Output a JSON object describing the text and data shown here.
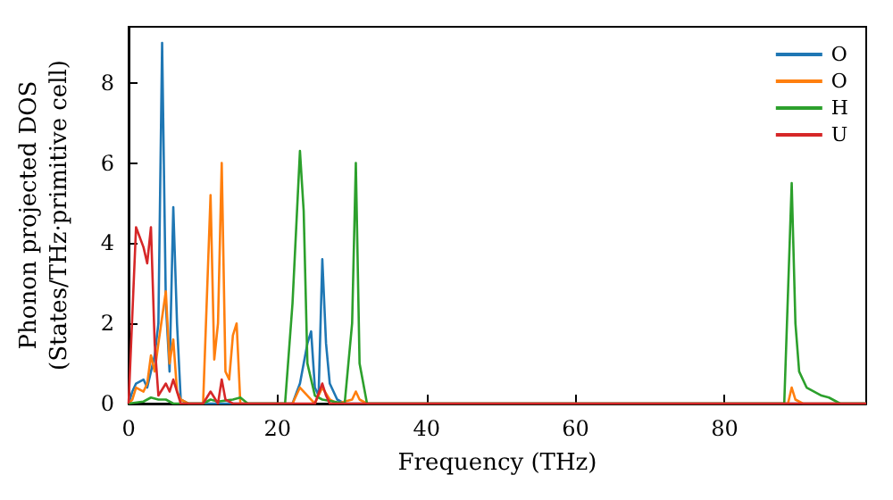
{
  "chart_data": {
    "type": "line",
    "xlabel": "Frequency (THz)",
    "ylabel": "Phonon projected DOS\n(States/THz·primitive cell)",
    "xlim": [
      0,
      99
    ],
    "xticks": [
      0,
      20,
      40,
      60,
      80
    ],
    "ylim": [
      0,
      9.4
    ],
    "yticks": [
      0,
      2,
      4,
      6,
      8
    ],
    "grid": false,
    "legend": "top right",
    "marker": "none",
    "line_style": "solid",
    "series": [
      {
        "name": "O",
        "color": "#1f77b4",
        "x": [
          0,
          0.5,
          1,
          2,
          2.5,
          3,
          3.5,
          4,
          4.5,
          5,
          5.5,
          6,
          6.5,
          7,
          8,
          22,
          23,
          24,
          24.5,
          25,
          25.5,
          26,
          26.5,
          27,
          28,
          29,
          99
        ],
        "values": [
          0,
          0.3,
          0.5,
          0.6,
          0.4,
          0.8,
          1.2,
          2.0,
          9.0,
          2.5,
          0.8,
          4.9,
          2.0,
          0.1,
          0,
          0,
          0.5,
          1.5,
          1.8,
          0.4,
          0.2,
          3.6,
          1.5,
          0.5,
          0.1,
          0,
          0
        ]
      },
      {
        "name": "O",
        "color": "#ff7f0e",
        "x": [
          0,
          0.5,
          1,
          2,
          2.5,
          3,
          3.5,
          4,
          5,
          5.5,
          6,
          6.5,
          7,
          8,
          10,
          11,
          11.5,
          12,
          12.5,
          13,
          13.5,
          14,
          14.5,
          15,
          22,
          23,
          24,
          25,
          26,
          27,
          28,
          30,
          30.5,
          31,
          32,
          88.5,
          89,
          89.5,
          90.5,
          99
        ],
        "values": [
          0,
          0.1,
          0.4,
          0.3,
          0.5,
          1.2,
          0.8,
          1.5,
          2.8,
          1.0,
          1.6,
          0.3,
          0.1,
          0,
          0,
          5.2,
          1.1,
          2.0,
          6.0,
          0.8,
          0.6,
          1.7,
          2.0,
          0,
          0,
          0.4,
          0.2,
          0,
          0.4,
          0.1,
          0,
          0.1,
          0.3,
          0.1,
          0,
          0,
          0.4,
          0.1,
          0,
          0
        ]
      },
      {
        "name": "H",
        "color": "#2ca02c",
        "x": [
          0,
          2,
          3,
          4,
          5,
          6,
          10,
          11,
          12,
          14,
          15,
          16,
          21,
          22,
          23,
          23.5,
          24,
          25,
          26,
          29,
          30,
          30.5,
          31,
          32,
          88,
          89,
          89.5,
          90,
          91,
          92,
          93,
          94,
          95,
          95.5,
          99
        ],
        "values": [
          0,
          0.05,
          0.15,
          0.1,
          0.1,
          0,
          0,
          0.1,
          0.05,
          0.1,
          0.15,
          0,
          0,
          2.5,
          6.3,
          4.8,
          1.0,
          0.2,
          0.1,
          0,
          2.0,
          6.0,
          1.0,
          0,
          0,
          5.5,
          2.0,
          0.8,
          0.4,
          0.3,
          0.2,
          0.15,
          0.05,
          0,
          0
        ]
      },
      {
        "name": "U",
        "color": "#d62728",
        "x": [
          0,
          1,
          2,
          2.5,
          3,
          3.5,
          4,
          5,
          5.5,
          6,
          6.5,
          7,
          10,
          11,
          12,
          12.5,
          13,
          14,
          25,
          26,
          26.5,
          27,
          99
        ],
        "values": [
          0,
          4.4,
          3.9,
          3.5,
          4.4,
          1.5,
          0.2,
          0.5,
          0.3,
          0.6,
          0.3,
          0,
          0,
          0.3,
          0,
          0.6,
          0.1,
          0,
          0,
          0.5,
          0.2,
          0,
          0
        ]
      }
    ]
  }
}
